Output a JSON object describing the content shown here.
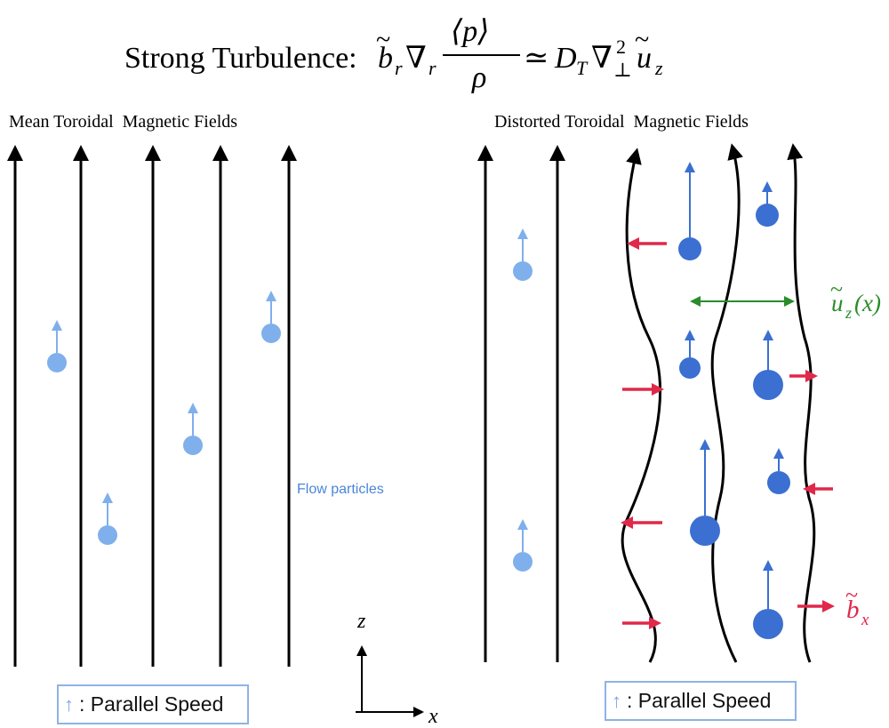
{
  "equation": {
    "prefix": "Strong Turbulence:",
    "b": "b",
    "r_sub": "r",
    "nabla": "∇",
    "nabla_sub": "r",
    "numerator": "⟨p⟩",
    "denominator": "ρ",
    "approx": "≃",
    "D": "D",
    "D_sub": "T",
    "nabla2": "∇",
    "sup2": "2",
    "perp": "⊥",
    "u": "u",
    "u_sub": "z"
  },
  "left_panel": {
    "title": "Mean Toroidal  Magnetic Fields"
  },
  "right_panel": {
    "title": "Distorted Toroidal  Magnetic Fields"
  },
  "flow_label": "Flow particles",
  "legend": {
    "arrow_icon": "↑",
    "text": ": Parallel Speed"
  },
  "axes": {
    "z": "z",
    "x": "x"
  },
  "annotations": {
    "uz_u": "u",
    "uz_sub": "z",
    "uz_arg": "(x)",
    "bx_b": "b",
    "bx_sub": "x"
  },
  "colors": {
    "field_line": "#000000",
    "light_particle": "#7fb0ec",
    "dark_particle": "#3b6fd1",
    "red_arrow": "#e0284a",
    "green_arrow": "#2a8c2a",
    "legend_border": "#8fb3e6"
  }
}
